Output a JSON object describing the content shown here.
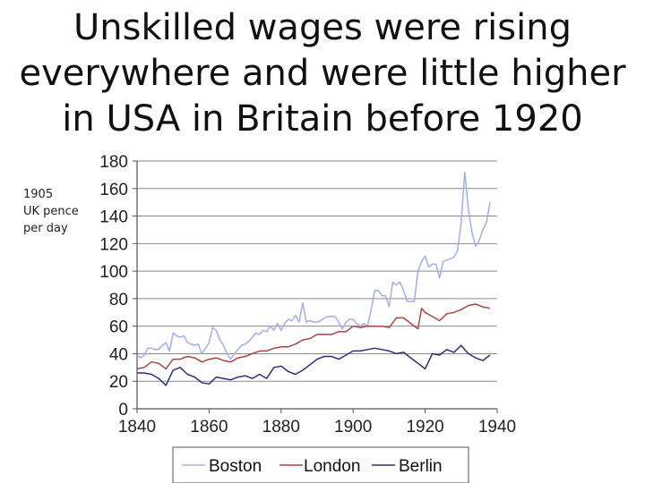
{
  "slide": {
    "title_lines": [
      "Unskilled wages were rising",
      "everywhere and were little higher",
      "in USA in Britain before 1920"
    ],
    "unit_label_lines": [
      "1905",
      "UK pence",
      "per day"
    ]
  },
  "chart_data": {
    "type": "line",
    "title": "",
    "xlabel": "",
    "ylabel": "1905 UK pence per day",
    "xlim": [
      1840,
      1940
    ],
    "ylim": [
      0,
      180
    ],
    "x_ticks": [
      "1840",
      "1860",
      "1880",
      "1900",
      "1920",
      "1940"
    ],
    "y_ticks": [
      "0",
      "20",
      "40",
      "60",
      "80",
      "100",
      "120",
      "140",
      "160",
      "180"
    ],
    "grid": "horizontal",
    "legend": "bottom",
    "series": [
      {
        "name": "Boston",
        "color": "#a6ade6",
        "points": [
          [
            1840,
            39
          ],
          [
            1841,
            37
          ],
          [
            1842,
            39
          ],
          [
            1843,
            44
          ],
          [
            1844,
            44
          ],
          [
            1845,
            43
          ],
          [
            1846,
            43
          ],
          [
            1847,
            46
          ],
          [
            1848,
            48
          ],
          [
            1849,
            42
          ],
          [
            1850,
            55
          ],
          [
            1851,
            53
          ],
          [
            1852,
            52
          ],
          [
            1853,
            53
          ],
          [
            1854,
            48
          ],
          [
            1855,
            47
          ],
          [
            1856,
            46
          ],
          [
            1857,
            47
          ],
          [
            1858,
            40
          ],
          [
            1859,
            44
          ],
          [
            1860,
            48
          ],
          [
            1861,
            59
          ],
          [
            1862,
            57
          ],
          [
            1863,
            50
          ],
          [
            1864,
            46
          ],
          [
            1865,
            40
          ],
          [
            1866,
            36
          ],
          [
            1867,
            40
          ],
          [
            1868,
            43
          ],
          [
            1869,
            46
          ],
          [
            1870,
            47
          ],
          [
            1871,
            49
          ],
          [
            1872,
            52
          ],
          [
            1873,
            55
          ],
          [
            1874,
            54
          ],
          [
            1875,
            57
          ],
          [
            1876,
            56
          ],
          [
            1877,
            60
          ],
          [
            1878,
            57
          ],
          [
            1879,
            62
          ],
          [
            1880,
            57
          ],
          [
            1881,
            62
          ],
          [
            1882,
            65
          ],
          [
            1883,
            64
          ],
          [
            1884,
            68
          ],
          [
            1885,
            63
          ],
          [
            1886,
            77
          ],
          [
            1887,
            63
          ],
          [
            1888,
            64
          ],
          [
            1889,
            63
          ],
          [
            1890,
            63
          ],
          [
            1891,
            64
          ],
          [
            1892,
            66
          ],
          [
            1893,
            67
          ],
          [
            1894,
            67
          ],
          [
            1895,
            67
          ],
          [
            1896,
            63
          ],
          [
            1897,
            58
          ],
          [
            1898,
            63
          ],
          [
            1899,
            65
          ],
          [
            1900,
            65
          ],
          [
            1901,
            62
          ],
          [
            1902,
            60
          ],
          [
            1903,
            62
          ],
          [
            1904,
            60
          ],
          [
            1905,
            72
          ],
          [
            1906,
            86
          ],
          [
            1907,
            86
          ],
          [
            1908,
            82
          ],
          [
            1909,
            82
          ],
          [
            1910,
            74
          ],
          [
            1911,
            92
          ],
          [
            1912,
            90
          ],
          [
            1913,
            92
          ],
          [
            1914,
            86
          ],
          [
            1915,
            78
          ],
          [
            1916,
            78
          ],
          [
            1917,
            78
          ],
          [
            1918,
            100
          ],
          [
            1919,
            107
          ],
          [
            1920,
            111
          ],
          [
            1921,
            103
          ],
          [
            1922,
            105
          ],
          [
            1923,
            105
          ],
          [
            1924,
            95
          ],
          [
            1925,
            107
          ],
          [
            1926,
            108
          ],
          [
            1927,
            109
          ],
          [
            1928,
            110
          ],
          [
            1929,
            115
          ],
          [
            1930,
            135
          ],
          [
            1931,
            172
          ],
          [
            1932,
            145
          ],
          [
            1933,
            128
          ],
          [
            1934,
            118
          ],
          [
            1935,
            122
          ],
          [
            1936,
            130
          ],
          [
            1937,
            135
          ],
          [
            1938,
            150
          ]
        ]
      },
      {
        "name": "London",
        "color": "#a64545",
        "points": [
          [
            1840,
            29
          ],
          [
            1842,
            30
          ],
          [
            1844,
            34
          ],
          [
            1846,
            33
          ],
          [
            1848,
            29
          ],
          [
            1850,
            36
          ],
          [
            1852,
            36
          ],
          [
            1854,
            38
          ],
          [
            1856,
            37
          ],
          [
            1858,
            34
          ],
          [
            1860,
            36
          ],
          [
            1862,
            37
          ],
          [
            1864,
            35
          ],
          [
            1866,
            34
          ],
          [
            1868,
            37
          ],
          [
            1870,
            38
          ],
          [
            1872,
            40
          ],
          [
            1874,
            42
          ],
          [
            1876,
            42
          ],
          [
            1878,
            44
          ],
          [
            1880,
            45
          ],
          [
            1882,
            45
          ],
          [
            1884,
            47
          ],
          [
            1886,
            50
          ],
          [
            1888,
            51
          ],
          [
            1890,
            54
          ],
          [
            1892,
            54
          ],
          [
            1894,
            54
          ],
          [
            1896,
            56
          ],
          [
            1898,
            56
          ],
          [
            1900,
            60
          ],
          [
            1902,
            59
          ],
          [
            1904,
            60
          ],
          [
            1906,
            60
          ],
          [
            1908,
            60
          ],
          [
            1910,
            59
          ],
          [
            1912,
            66
          ],
          [
            1914,
            66
          ],
          [
            1916,
            62
          ],
          [
            1918,
            58
          ],
          [
            1919,
            73
          ],
          [
            1920,
            70
          ],
          [
            1922,
            67
          ],
          [
            1924,
            64
          ],
          [
            1926,
            69
          ],
          [
            1928,
            70
          ],
          [
            1930,
            72
          ],
          [
            1932,
            75
          ],
          [
            1934,
            76
          ],
          [
            1936,
            74
          ],
          [
            1938,
            73
          ]
        ]
      },
      {
        "name": "Berlin",
        "color": "#2c2f78",
        "points": [
          [
            1840,
            26
          ],
          [
            1842,
            26
          ],
          [
            1844,
            25
          ],
          [
            1846,
            22
          ],
          [
            1848,
            17
          ],
          [
            1850,
            28
          ],
          [
            1852,
            30
          ],
          [
            1854,
            25
          ],
          [
            1856,
            23
          ],
          [
            1858,
            19
          ],
          [
            1860,
            18
          ],
          [
            1862,
            23
          ],
          [
            1864,
            22
          ],
          [
            1866,
            21
          ],
          [
            1868,
            23
          ],
          [
            1870,
            24
          ],
          [
            1872,
            22
          ],
          [
            1874,
            25
          ],
          [
            1876,
            22
          ],
          [
            1878,
            30
          ],
          [
            1880,
            31
          ],
          [
            1882,
            27
          ],
          [
            1884,
            25
          ],
          [
            1886,
            28
          ],
          [
            1888,
            32
          ],
          [
            1890,
            36
          ],
          [
            1892,
            38
          ],
          [
            1894,
            38
          ],
          [
            1896,
            36
          ],
          [
            1898,
            39
          ],
          [
            1900,
            42
          ],
          [
            1902,
            42
          ],
          [
            1904,
            43
          ],
          [
            1906,
            44
          ],
          [
            1908,
            43
          ],
          [
            1910,
            42
          ],
          [
            1912,
            40
          ],
          [
            1914,
            41
          ],
          [
            1916,
            37
          ],
          [
            1918,
            33
          ],
          [
            1920,
            29
          ],
          [
            1922,
            40
          ],
          [
            1924,
            39
          ],
          [
            1926,
            43
          ],
          [
            1928,
            41
          ],
          [
            1930,
            46
          ],
          [
            1932,
            40
          ],
          [
            1934,
            37
          ],
          [
            1936,
            35
          ],
          [
            1938,
            39
          ]
        ]
      }
    ]
  }
}
